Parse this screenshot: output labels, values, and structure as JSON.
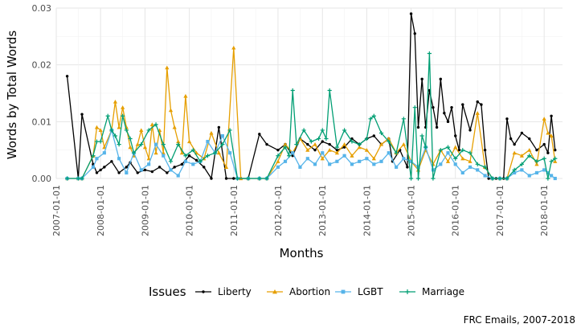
{
  "chart_data": {
    "type": "line",
    "title": "",
    "xlabel": "Months",
    "ylabel": "Words by Total Words",
    "caption": "FRC Emails, 2007-2018",
    "legend_title": "Issues",
    "legend_position": "bottom",
    "ylim": [
      0,
      0.03
    ],
    "yticks": [
      0.0,
      0.01,
      0.02,
      0.03
    ],
    "ytick_labels": [
      "0.00",
      "0.01",
      "0.02",
      "0.03"
    ],
    "xlim": [
      "2007-01-01",
      "2018-06-01"
    ],
    "xticks": [
      "2007-01-01",
      "2008-01-01",
      "2009-01-01",
      "2010-01-01",
      "2011-01-01",
      "2012-01-01",
      "2013-01-01",
      "2014-01-01",
      "2015-01-01",
      "2016-01-01",
      "2017-01-01",
      "2018-01-01"
    ],
    "series": [
      {
        "name": "Liberty",
        "color": "#000000",
        "marker": "dot",
        "x": [
          "2007-04",
          "2007-07",
          "2007-08",
          "2007-11",
          "2007-12",
          "2008-01",
          "2008-02",
          "2008-04",
          "2008-06",
          "2008-08",
          "2008-09",
          "2008-11",
          "2009-01",
          "2009-03",
          "2009-05",
          "2009-07",
          "2009-09",
          "2009-11",
          "2010-01",
          "2010-03",
          "2010-05",
          "2010-07",
          "2010-09",
          "2010-11",
          "2011-01",
          "2011-02",
          "2011-03",
          "2011-05",
          "2011-08",
          "2011-10",
          "2012-01",
          "2012-03",
          "2012-05",
          "2012-07",
          "2012-09",
          "2012-11",
          "2013-01",
          "2013-03",
          "2013-05",
          "2013-07",
          "2013-09",
          "2013-11",
          "2014-01",
          "2014-03",
          "2014-05",
          "2014-07",
          "2014-08",
          "2014-10",
          "2014-12",
          "2015-01",
          "2015-02",
          "2015-03",
          "2015-04",
          "2015-05",
          "2015-06",
          "2015-07",
          "2015-08",
          "2015-09",
          "2015-10",
          "2015-11",
          "2015-12",
          "2016-01",
          "2016-02",
          "2016-03",
          "2016-05",
          "2016-07",
          "2016-08",
          "2016-09",
          "2016-10",
          "2016-11",
          "2016-12",
          "2017-01",
          "2017-02",
          "2017-03",
          "2017-04",
          "2017-05",
          "2017-07",
          "2017-09",
          "2017-11",
          "2018-01",
          "2018-02",
          "2018-03",
          "2018-04"
        ],
        "values": [
          0.018,
          0.0,
          0.0113,
          0.0025,
          0.001,
          0.0015,
          0.002,
          0.003,
          0.001,
          0.002,
          0.0028,
          0.001,
          0.0015,
          0.0012,
          0.002,
          0.001,
          0.002,
          0.0025,
          0.004,
          0.0032,
          0.002,
          0.0,
          0.009,
          0.0,
          0.0,
          0.0,
          0.0,
          0.0,
          0.0078,
          0.006,
          0.005,
          0.006,
          0.004,
          0.007,
          0.006,
          0.005,
          0.0065,
          0.006,
          0.005,
          0.0055,
          0.007,
          0.006,
          0.007,
          0.0075,
          0.006,
          0.007,
          0.003,
          0.005,
          0.002,
          0.029,
          0.0255,
          0.009,
          0.0175,
          0.009,
          0.0155,
          0.0125,
          0.009,
          0.0175,
          0.0115,
          0.01,
          0.0125,
          0.0075,
          0.005,
          0.013,
          0.0085,
          0.0135,
          0.013,
          0.005,
          0.0,
          0.0,
          0.0,
          0.0,
          0.0,
          0.0105,
          0.007,
          0.006,
          0.008,
          0.007,
          0.005,
          0.006,
          0.0045,
          0.011,
          0.005
        ]
      },
      {
        "name": "Abortion",
        "color": "#E69F00",
        "marker": "triangle",
        "x": [
          "2007-04",
          "2007-07",
          "2007-08",
          "2007-11",
          "2007-12",
          "2008-01",
          "2008-02",
          "2008-04",
          "2008-05",
          "2008-06",
          "2008-07",
          "2008-08",
          "2008-09",
          "2008-10",
          "2008-11",
          "2008-12",
          "2009-01",
          "2009-02",
          "2009-03",
          "2009-04",
          "2009-05",
          "2009-06",
          "2009-07",
          "2009-08",
          "2009-09",
          "2009-10",
          "2009-11",
          "2009-12",
          "2010-01",
          "2010-03",
          "2010-05",
          "2010-07",
          "2010-09",
          "2010-11",
          "2011-01",
          "2011-03",
          "2011-05",
          "2011-08",
          "2011-10",
          "2012-01",
          "2012-03",
          "2012-05",
          "2012-07",
          "2012-09",
          "2012-11",
          "2013-01",
          "2013-03",
          "2013-05",
          "2013-07",
          "2013-09",
          "2013-11",
          "2014-01",
          "2014-03",
          "2014-05",
          "2014-07",
          "2014-09",
          "2014-11",
          "2015-01",
          "2015-03",
          "2015-05",
          "2015-07",
          "2015-09",
          "2015-11",
          "2016-01",
          "2016-03",
          "2016-05",
          "2016-07",
          "2016-09",
          "2016-11",
          "2017-01",
          "2017-03",
          "2017-05",
          "2017-07",
          "2017-09",
          "2017-11",
          "2018-01",
          "2018-02",
          "2018-03",
          "2018-04"
        ],
        "values": [
          0.0,
          0.0,
          0.0,
          0.004,
          0.009,
          0.0085,
          0.0055,
          0.0085,
          0.0135,
          0.009,
          0.0125,
          0.009,
          0.0055,
          0.004,
          0.006,
          0.0085,
          0.0055,
          0.0035,
          0.0095,
          0.0045,
          0.0085,
          0.0045,
          0.0195,
          0.012,
          0.009,
          0.0065,
          0.0045,
          0.0145,
          0.0065,
          0.0045,
          0.0035,
          0.008,
          0.0045,
          0.002,
          0.023,
          0.0,
          0.0,
          0.0,
          0.0,
          0.003,
          0.006,
          0.0045,
          0.007,
          0.005,
          0.006,
          0.0035,
          0.005,
          0.0045,
          0.006,
          0.004,
          0.0055,
          0.005,
          0.0035,
          0.006,
          0.007,
          0.0045,
          0.006,
          0.003,
          0.0015,
          0.005,
          0.0025,
          0.005,
          0.003,
          0.0055,
          0.0035,
          0.003,
          0.0115,
          0.002,
          0.0,
          0.0,
          0.0,
          0.0045,
          0.004,
          0.005,
          0.0025,
          0.0105,
          0.008,
          0.0075,
          0.003
        ]
      },
      {
        "name": "LGBT",
        "color": "#56B4E9",
        "marker": "square",
        "x": [
          "2007-04",
          "2007-07",
          "2007-08",
          "2007-11",
          "2007-12",
          "2008-02",
          "2008-04",
          "2008-06",
          "2008-08",
          "2008-10",
          "2008-12",
          "2009-02",
          "2009-04",
          "2009-06",
          "2009-08",
          "2009-10",
          "2009-12",
          "2010-02",
          "2010-04",
          "2010-06",
          "2010-08",
          "2010-10",
          "2010-12",
          "2011-02",
          "2011-05",
          "2011-08",
          "2011-10",
          "2012-01",
          "2012-03",
          "2012-05",
          "2012-07",
          "2012-09",
          "2012-11",
          "2013-01",
          "2013-03",
          "2013-05",
          "2013-07",
          "2013-09",
          "2013-11",
          "2014-01",
          "2014-03",
          "2014-05",
          "2014-07",
          "2014-09",
          "2014-11",
          "2015-01",
          "2015-03",
          "2015-05",
          "2015-07",
          "2015-09",
          "2015-11",
          "2016-01",
          "2016-03",
          "2016-05",
          "2016-07",
          "2016-09",
          "2016-11",
          "2017-01",
          "2017-03",
          "2017-05",
          "2017-07",
          "2017-09",
          "2017-11",
          "2018-01",
          "2018-02",
          "2018-03",
          "2018-04"
        ],
        "values": [
          0.0,
          0.0,
          0.0,
          0.002,
          0.0035,
          0.0045,
          0.0085,
          0.0035,
          0.001,
          0.0045,
          0.0015,
          0.0025,
          0.006,
          0.004,
          0.0015,
          0.0005,
          0.003,
          0.0025,
          0.003,
          0.0065,
          0.0045,
          0.0075,
          0.0045,
          0.0,
          0.0,
          0.0,
          0.0,
          0.002,
          0.003,
          0.0045,
          0.002,
          0.0035,
          0.0025,
          0.0045,
          0.0025,
          0.003,
          0.004,
          0.0025,
          0.003,
          0.0035,
          0.0025,
          0.003,
          0.0045,
          0.002,
          0.0035,
          0.003,
          0.002,
          0.0055,
          0.0015,
          0.0025,
          0.0045,
          0.0025,
          0.001,
          0.002,
          0.0015,
          0.0005,
          0.0,
          0.0,
          0.0,
          0.001,
          0.0015,
          0.0005,
          0.001,
          0.0015,
          0.001,
          0.0005,
          0.0
        ]
      },
      {
        "name": "Marriage",
        "color": "#009E73",
        "marker": "plus",
        "x": [
          "2007-04",
          "2007-07",
          "2007-08",
          "2007-11",
          "2007-12",
          "2008-01",
          "2008-03",
          "2008-04",
          "2008-05",
          "2008-06",
          "2008-07",
          "2008-08",
          "2008-09",
          "2008-10",
          "2008-12",
          "2009-02",
          "2009-04",
          "2009-06",
          "2009-08",
          "2009-10",
          "2009-12",
          "2010-02",
          "2010-04",
          "2010-06",
          "2010-08",
          "2010-10",
          "2010-12",
          "2011-02",
          "2011-05",
          "2011-08",
          "2011-10",
          "2012-01",
          "2012-03",
          "2012-04",
          "2012-05",
          "2012-06",
          "2012-08",
          "2012-10",
          "2012-12",
          "2013-01",
          "2013-02",
          "2013-03",
          "2013-05",
          "2013-07",
          "2013-09",
          "2013-11",
          "2014-01",
          "2014-02",
          "2014-03",
          "2014-05",
          "2014-07",
          "2014-09",
          "2014-11",
          "2015-01",
          "2015-02",
          "2015-03",
          "2015-04",
          "2015-05",
          "2015-06",
          "2015-07",
          "2015-09",
          "2015-11",
          "2016-01",
          "2016-03",
          "2016-05",
          "2016-07",
          "2016-09",
          "2016-11",
          "2017-01",
          "2017-03",
          "2017-05",
          "2017-07",
          "2017-09",
          "2017-11",
          "2018-01",
          "2018-02",
          "2018-03",
          "2018-04"
        ],
        "values": [
          0.0,
          0.0,
          0.0,
          0.004,
          0.0065,
          0.0065,
          0.011,
          0.0085,
          0.0075,
          0.006,
          0.011,
          0.0085,
          0.007,
          0.0045,
          0.006,
          0.0085,
          0.0095,
          0.006,
          0.003,
          0.006,
          0.004,
          0.005,
          0.003,
          0.004,
          0.0045,
          0.006,
          0.0085,
          0.0,
          0.0,
          0.0,
          0.0,
          0.004,
          0.0055,
          0.004,
          0.0155,
          0.006,
          0.0085,
          0.0065,
          0.007,
          0.0085,
          0.007,
          0.0155,
          0.0055,
          0.0085,
          0.0065,
          0.006,
          0.007,
          0.0105,
          0.011,
          0.008,
          0.0065,
          0.0045,
          0.0105,
          0.0,
          0.0125,
          0.0,
          0.0075,
          0.0055,
          0.022,
          0.0,
          0.005,
          0.0055,
          0.0035,
          0.005,
          0.0045,
          0.0025,
          0.002,
          0.0,
          0.0,
          0.0,
          0.0015,
          0.0025,
          0.004,
          0.003,
          0.0035,
          0.0,
          0.003,
          0.0035
        ]
      }
    ]
  }
}
